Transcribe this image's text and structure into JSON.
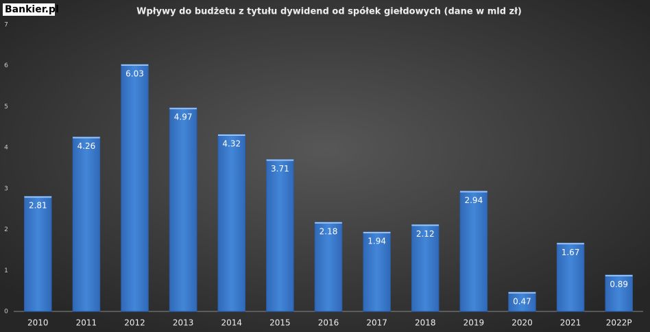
{
  "logo": "Bankier.pl",
  "chart_data": {
    "type": "bar",
    "title": "Wpływy do budżetu z tytułu dywidend od spółek giełdowych (dane w mld zł)",
    "categories": [
      "2010",
      "2011",
      "2012",
      "2013",
      "2014",
      "2015",
      "2016",
      "2017",
      "2018",
      "2019",
      "2020",
      "2021",
      "2022P"
    ],
    "values": [
      2.81,
      4.26,
      6.03,
      4.97,
      4.32,
      3.71,
      2.18,
      1.94,
      2.12,
      2.94,
      0.47,
      1.67,
      0.89
    ],
    "color": "#3f7fd0",
    "ylim": [
      0,
      7
    ],
    "yticks": [
      0,
      1,
      2,
      3,
      4,
      5,
      6,
      7
    ],
    "grid": false
  }
}
